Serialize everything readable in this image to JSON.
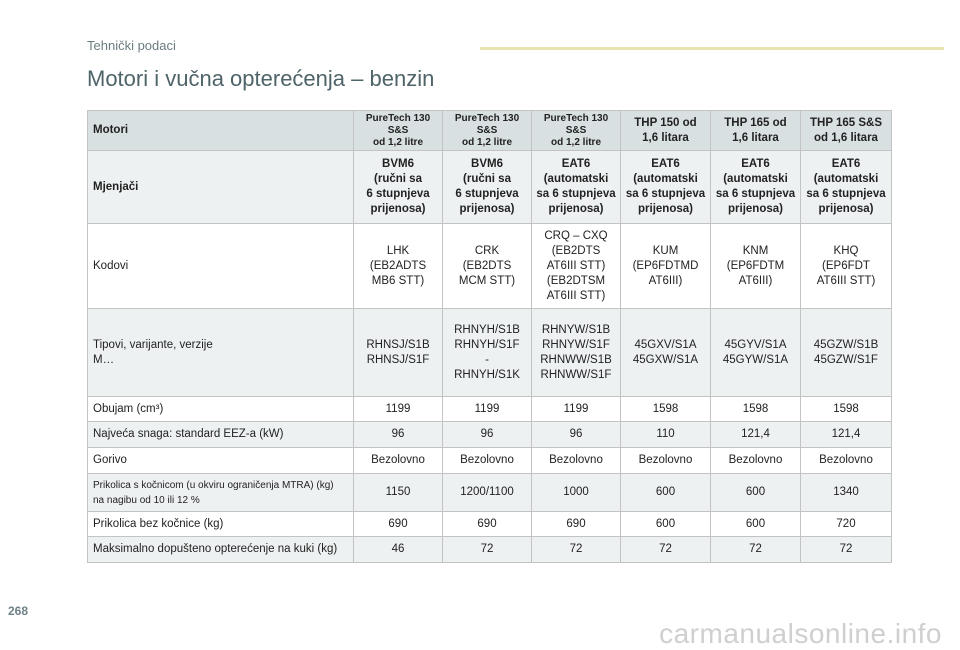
{
  "section": "Tehnički podaci",
  "title": "Motori i vučna opterećenja – benzin",
  "page_number": "268",
  "watermark": "carmanualsonline.info",
  "table": {
    "header": {
      "label": "Motori",
      "engines": [
        "PureTech 130 S&S\nod 1,2 litre",
        "PureTech 130 S&S\nod 1,2 litre",
        "PureTech 130 S&S\nod 1,2 litre",
        "THP 150 od\n1,6 litara",
        "THP 165 od\n1,6 litara",
        "THP 165 S&S\nod 1,6 litara"
      ]
    },
    "gearbox": {
      "label": "Mjenjači",
      "values": [
        "BVM6\n(ručni sa\n6 stupnjeva\nprijenosa)",
        "BVM6\n(ručni sa\n6 stupnjeva\nprijenosa)",
        "EAT6\n(automatski\nsa 6 stupnjeva\nprijenosa)",
        "EAT6\n(automatski\nsa 6 stupnjeva\nprijenosa)",
        "EAT6\n(automatski\nsa 6 stupnjeva\nprijenosa)",
        "EAT6\n(automatski\nsa 6 stupnjeva\nprijenosa)"
      ]
    },
    "codes": {
      "label": "Kodovi",
      "values": [
        "LHK\n(EB2ADTS\nMB6 STT)",
        "CRK\n(EB2DTS\nMCM STT)",
        "CRQ – CXQ\n(EB2DTS\nAT6III STT)\n(EB2DTSM\nAT6III STT)",
        "KUM\n(EP6FDTMD\nAT6III)",
        "KNM\n(EP6FDTM\nAT6III)",
        "KHQ\n(EP6FDT\nAT6III STT)"
      ]
    },
    "types": {
      "label": "Tipovi, varijante, verzije\nM…",
      "values": [
        "RHNSJ/S1B\nRHNSJ/S1F",
        "RHNYH/S1B\nRHNYH/S1F\n-\nRHNYH/S1K",
        "RHNYW/S1B\nRHNYW/S1F\nRHNWW/S1B\nRHNWW/S1F",
        "45GXV/S1A\n45GXW/S1A",
        "45GYV/S1A\n45GYW/S1A",
        "45GZW/S1B\n45GZW/S1F"
      ]
    },
    "displacement": {
      "label": "Obujam (cm³)",
      "values": [
        "1199",
        "1199",
        "1199",
        "1598",
        "1598",
        "1598"
      ]
    },
    "power": {
      "label": "Najveća snaga: standard EEZ-a (kW)",
      "values": [
        "96",
        "96",
        "96",
        "110",
        "121,4",
        "121,4"
      ]
    },
    "fuel": {
      "label": "Gorivo",
      "values": [
        "Bezolovno",
        "Bezolovno",
        "Bezolovno",
        "Bezolovno",
        "Bezolovno",
        "Bezolovno"
      ]
    },
    "braked_trailer": {
      "label": "Prikolica s kočnicom (u okviru ograničenja MTRA) (kg)\nna nagibu od 10 ili 12 %",
      "values": [
        "1150",
        "1200/1100",
        "1000",
        "600",
        "600",
        "1340"
      ]
    },
    "unbraked_trailer": {
      "label": "Prikolica bez kočnice (kg)",
      "values": [
        "690",
        "690",
        "690",
        "600",
        "600",
        "720"
      ]
    },
    "towbar_load": {
      "label": "Maksimalno dopušteno opterećenje na kuki (kg)",
      "values": [
        "46",
        "72",
        "72",
        "72",
        "72",
        "72"
      ]
    }
  }
}
